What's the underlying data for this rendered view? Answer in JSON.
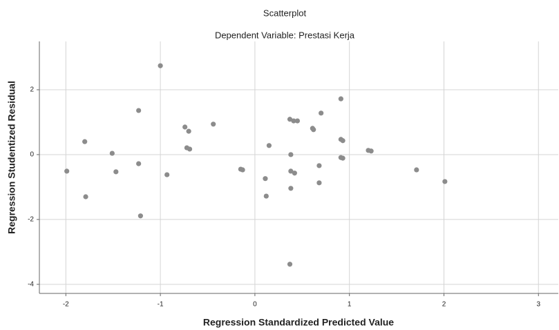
{
  "chart_data": {
    "type": "scatter",
    "title": "Scatterplot",
    "subtitle": "Dependent Variable: Prestasi Kerja",
    "x_label": "Regression Standardized Predicted Value",
    "y_label": "Regression Studentized Residual",
    "color": "#8c8c8c",
    "grid": true,
    "xlim": [
      -2.28,
      3.21
    ],
    "ylim": [
      -4.28,
      3.49
    ],
    "xticks": [
      -2,
      -1,
      0,
      1,
      2,
      3
    ],
    "yticks": [
      -4,
      -2,
      0,
      2
    ],
    "x": [
      -1.99,
      -1.8,
      -1.79,
      -1.51,
      -1.47,
      -1.23,
      -1.23,
      -1.21,
      -1.0,
      -0.93,
      -0.74,
      -0.7,
      -0.72,
      -0.69,
      -0.44,
      -0.15,
      -0.13,
      0.11,
      0.12,
      0.15,
      0.37,
      0.41,
      0.45,
      0.38,
      0.38,
      0.42,
      0.38,
      0.37,
      0.61,
      0.62,
      0.7,
      0.68,
      0.68,
      0.91,
      0.91,
      0.93,
      0.91,
      0.93,
      1.2,
      1.23,
      1.71,
      2.01
    ],
    "values": [
      -0.51,
      0.4,
      -1.3,
      0.04,
      -0.53,
      1.36,
      -0.28,
      -1.89,
      2.74,
      -0.62,
      0.85,
      0.72,
      0.21,
      0.17,
      0.94,
      -0.45,
      -0.47,
      -0.74,
      -1.28,
      0.28,
      1.09,
      1.04,
      1.04,
      0,
      -0.51,
      -0.57,
      -1.04,
      -3.38,
      0.81,
      0.77,
      1.28,
      -0.34,
      -0.87,
      1.72,
      0.47,
      0.43,
      -0.09,
      -0.11,
      0.13,
      0.11,
      -0.47,
      -0.83
    ]
  }
}
